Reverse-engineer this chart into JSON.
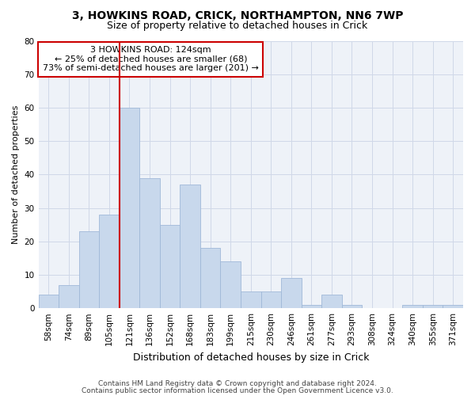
{
  "title1": "3, HOWKINS ROAD, CRICK, NORTHAMPTON, NN6 7WP",
  "title2": "Size of property relative to detached houses in Crick",
  "xlabel": "Distribution of detached houses by size in Crick",
  "ylabel": "Number of detached properties",
  "categories": [
    "58sqm",
    "74sqm",
    "89sqm",
    "105sqm",
    "121sqm",
    "136sqm",
    "152sqm",
    "168sqm",
    "183sqm",
    "199sqm",
    "215sqm",
    "230sqm",
    "246sqm",
    "261sqm",
    "277sqm",
    "293sqm",
    "308sqm",
    "324sqm",
    "340sqm",
    "355sqm",
    "371sqm"
  ],
  "values": [
    4,
    7,
    23,
    28,
    60,
    39,
    25,
    37,
    18,
    14,
    5,
    5,
    9,
    1,
    4,
    1,
    0,
    0,
    1,
    1,
    1
  ],
  "bar_color": "#c8d8ec",
  "bar_edge_color": "#a0b8d8",
  "grid_color": "#d0d8e8",
  "vline_color": "#cc0000",
  "annotation_text": "3 HOWKINS ROAD: 124sqm\n← 25% of detached houses are smaller (68)\n73% of semi-detached houses are larger (201) →",
  "annotation_box_color": "#ffffff",
  "annotation_box_edge": "#cc0000",
  "ylim": [
    0,
    80
  ],
  "yticks": [
    0,
    10,
    20,
    30,
    40,
    50,
    60,
    70,
    80
  ],
  "footer1": "Contains HM Land Registry data © Crown copyright and database right 2024.",
  "footer2": "Contains public sector information licensed under the Open Government Licence v3.0.",
  "background_color": "#ffffff",
  "plot_bg_color": "#eef2f8",
  "title1_fontsize": 10,
  "title2_fontsize": 9,
  "xlabel_fontsize": 9,
  "ylabel_fontsize": 8,
  "tick_fontsize": 7.5,
  "annotation_fontsize": 8,
  "footer_fontsize": 6.5
}
